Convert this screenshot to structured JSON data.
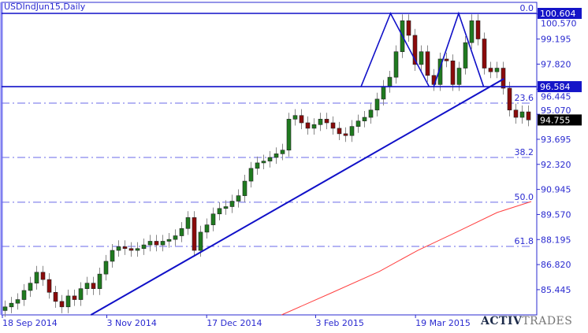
{
  "chart_data": {
    "type": "candlestick",
    "title": "USDIndJun15,Daily",
    "y_ticks": [
      "100.570",
      "99.195",
      "97.820",
      "96.445",
      "95.070",
      "93.695",
      "92.320",
      "90.945",
      "89.570",
      "88.195",
      "86.820",
      "85.445"
    ],
    "x_ticks": [
      "18 Sep 2014",
      "3 Nov 2014",
      "17 Dec 2014",
      "3 Feb 2015",
      "19 Mar 2015"
    ],
    "ylim": [
      83.9,
      101.2
    ],
    "grid": false,
    "close": [
      84.5,
      84.7,
      84.9,
      85.4,
      85.8,
      86.4,
      86.0,
      85.3,
      84.8,
      84.5,
      85.1,
      84.9,
      85.5,
      85.8,
      85.5,
      86.3,
      87.0,
      87.6,
      87.8,
      87.7,
      87.6,
      87.7,
      87.9,
      88.1,
      87.9,
      88.1,
      88.2,
      88.4,
      88.8,
      89.4,
      87.6,
      88.6,
      89.0,
      89.6,
      89.9,
      90.0,
      90.3,
      90.6,
      91.4,
      92.1,
      92.4,
      92.5,
      92.7,
      92.9,
      93.1,
      94.8,
      95.0,
      94.6,
      94.3,
      94.5,
      94.8,
      94.6,
      94.3,
      94.0,
      93.9,
      94.4,
      94.7,
      94.9,
      95.3,
      95.9,
      96.6,
      97.1,
      98.5,
      100.2,
      99.4,
      97.8,
      98.5,
      97.2,
      96.7,
      98.1,
      98.0,
      96.7,
      97.6,
      99.0,
      100.2,
      99.2,
      97.6,
      97.4,
      97.6,
      96.5,
      95.3,
      94.9,
      95.2,
      94.76
    ],
    "price_labels": [
      {
        "text": "100.604",
        "price": 100.604,
        "style": "blue"
      },
      {
        "text": "96.584",
        "price": 96.584,
        "style": "blue"
      },
      {
        "text": "94.755",
        "price": 94.755,
        "style": "black"
      }
    ],
    "horizontal_lines": [
      100.604,
      96.584
    ],
    "fibonacci": [
      {
        "label": "0.0",
        "price": 100.604
      },
      {
        "label": "23.6",
        "price": 95.68
      },
      {
        "label": "38.2",
        "price": 92.7
      },
      {
        "label": "50.0",
        "price": 90.24
      },
      {
        "label": "61.8",
        "price": 87.82
      }
    ],
    "trendline": [
      [
        "2014-10-27",
        84.06
      ],
      [
        "2015-04-27",
        97.02
      ]
    ],
    "pattern_lines": [
      [
        [
          "2015-02-23",
          96.584
        ],
        [
          "2015-03-08",
          100.604
        ],
        [
          "2015-03-25",
          96.584
        ]
      ],
      [
        [
          "2015-03-27",
          96.584
        ],
        [
          "2015-04-07",
          100.604
        ],
        [
          "2015-04-18",
          96.584
        ]
      ]
    ],
    "moving_average": [
      [
        "2015-01-19",
        84.06
      ],
      [
        "2015-02-10",
        85.27
      ],
      [
        "2015-03-03",
        86.44
      ],
      [
        "2015-03-20",
        87.6
      ],
      [
        "2015-04-06",
        88.6
      ],
      [
        "2015-04-24",
        89.68
      ],
      [
        "2015-05-09",
        90.28
      ]
    ],
    "colors": {
      "axis": "#2a2ad0",
      "line": "#1010c8",
      "up": "#1f7a1f",
      "down": "#8b0a0a",
      "ma": "#ff4040",
      "fib": "#6a6ae8"
    }
  },
  "logo": {
    "part1": "ACTIV",
    "part2": "TRADES"
  }
}
